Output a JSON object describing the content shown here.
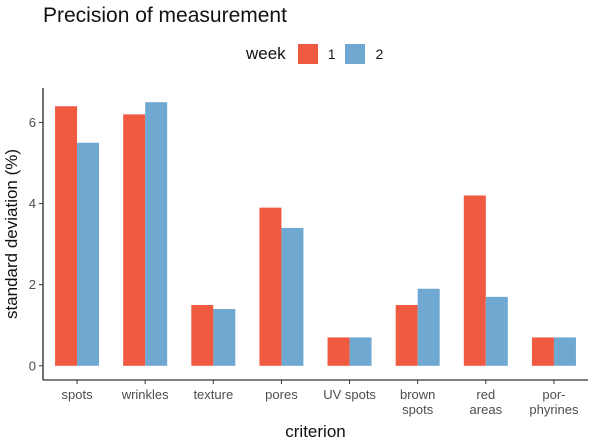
{
  "chart_data": {
    "type": "bar",
    "title": "Precision of measurement",
    "xlabel": "criterion",
    "ylabel": "standard deviation (%)",
    "categories": [
      [
        "spots"
      ],
      [
        "wrinkles"
      ],
      [
        "texture"
      ],
      [
        "pores"
      ],
      [
        "UV spots"
      ],
      [
        "brown",
        "spots"
      ],
      [
        "red",
        "areas"
      ],
      [
        "por-",
        "phyrines"
      ]
    ],
    "series": [
      {
        "name": "1",
        "color": "#ef5a40",
        "values": [
          6.4,
          6.2,
          1.5,
          3.9,
          0.7,
          1.5,
          4.2,
          0.7
        ]
      },
      {
        "name": "2",
        "color": "#6fa8d0",
        "values": [
          5.5,
          6.5,
          1.4,
          3.4,
          0.7,
          1.9,
          1.7,
          0.7
        ]
      }
    ],
    "ylim": [
      -0.35,
      6.85
    ],
    "yticks": [
      "0",
      "2",
      "4",
      "6"
    ],
    "legend": {
      "title": "week",
      "position": "top"
    },
    "grid": false
  }
}
